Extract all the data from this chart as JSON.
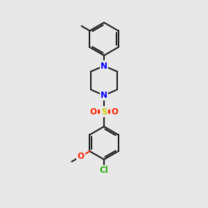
{
  "bg_color": "#e8e8e8",
  "bond_color": "#1a1a1a",
  "bond_width": 1.5,
  "atom_colors": {
    "N": "#0000ff",
    "O": "#ff2200",
    "S": "#cccc00",
    "Cl": "#22aa00",
    "C": "#1a1a1a"
  },
  "font_size_atom": 8.5,
  "xlim": [
    0,
    10
  ],
  "ylim": [
    0,
    12
  ]
}
